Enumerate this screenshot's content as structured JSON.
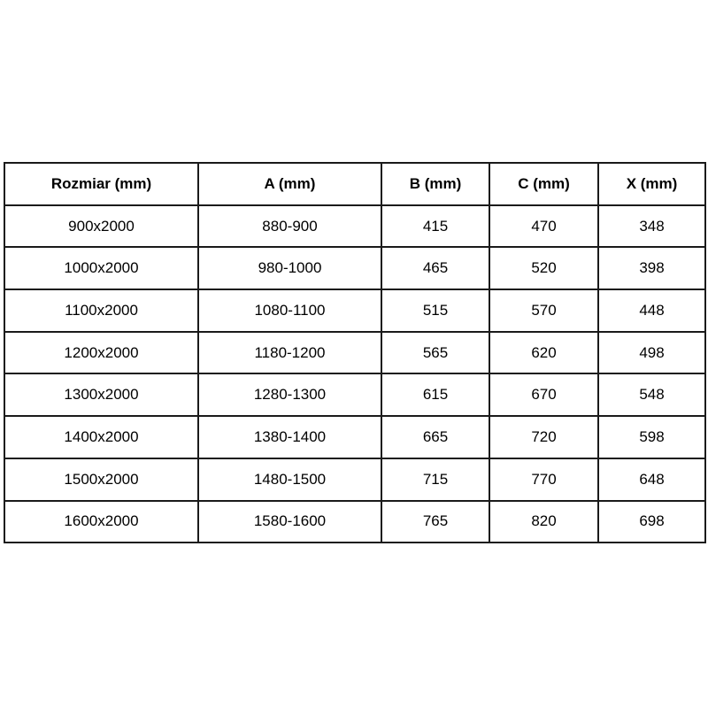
{
  "table": {
    "headers": [
      "Rozmiar (mm)",
      "A (mm)",
      "B (mm)",
      "C (mm)",
      "X (mm)"
    ],
    "rows": [
      [
        "900x2000",
        "880-900",
        "415",
        "470",
        "348"
      ],
      [
        "1000x2000",
        "980-1000",
        "465",
        "520",
        "398"
      ],
      [
        "1100x2000",
        "1080-1100",
        "515",
        "570",
        "448"
      ],
      [
        "1200x2000",
        "1180-1200",
        "565",
        "620",
        "498"
      ],
      [
        "1300x2000",
        "1280-1300",
        "615",
        "670",
        "548"
      ],
      [
        "1400x2000",
        "1380-1400",
        "665",
        "720",
        "598"
      ],
      [
        "1500x2000",
        "1480-1500",
        "715",
        "770",
        "648"
      ],
      [
        "1600x2000",
        "1580-1600",
        "765",
        "820",
        "698"
      ]
    ]
  },
  "colors": {
    "border": "#1a1a1a",
    "text": "#000000",
    "background": "#ffffff"
  }
}
